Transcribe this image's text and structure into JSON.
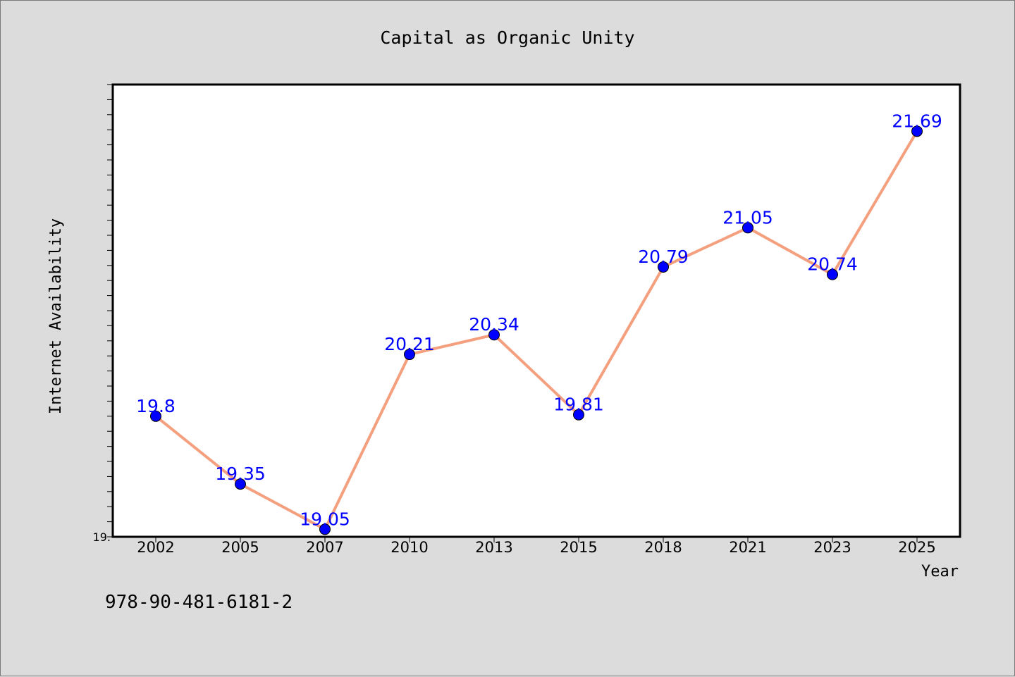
{
  "chart_data": {
    "type": "line",
    "title": "Capital as Organic Unity",
    "xlabel": "Year",
    "ylabel": "Internet Availability",
    "categories": [
      "2002",
      "2005",
      "2007",
      "2010",
      "2013",
      "2015",
      "2018",
      "2021",
      "2023",
      "2025"
    ],
    "values": [
      19.8,
      19.35,
      19.05,
      20.21,
      20.34,
      19.81,
      20.79,
      21.05,
      20.74,
      21.69
    ],
    "data_labels": [
      "19.8",
      "19.35",
      "19.05",
      "20.21",
      "20.34",
      "19.81",
      "20.79",
      "21.05",
      "20.74",
      "21.69"
    ],
    "y_tick_labels": [
      "19."
    ],
    "ylim": [
      19.0,
      22.0
    ],
    "grid": false,
    "line_color": "#f4a07f",
    "marker_color": "#0000ff",
    "label_color": "#0000ff"
  },
  "footnote": "978-90-481-6181-2"
}
